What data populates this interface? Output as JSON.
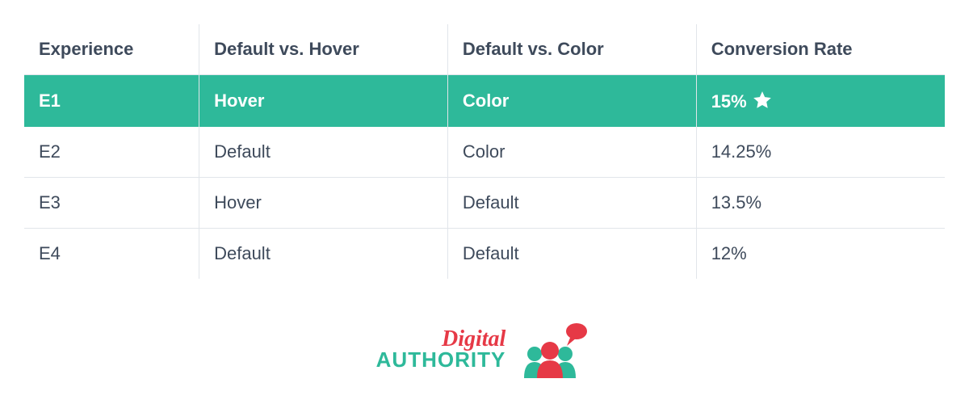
{
  "table": {
    "type": "table",
    "columns": [
      "Experience",
      "Default vs. Hover",
      "Default vs. Color",
      "Conversion Rate"
    ],
    "column_widths_pct": [
      19,
      27,
      27,
      27
    ],
    "rows": [
      {
        "cells": [
          "E1",
          "Hover",
          "Color",
          "15%"
        ],
        "highlighted": true,
        "star": true
      },
      {
        "cells": [
          "E2",
          "Default",
          "Color",
          "14.25%"
        ],
        "highlighted": false,
        "star": false
      },
      {
        "cells": [
          "E3",
          "Hover",
          "Default",
          "13.5%"
        ],
        "highlighted": false,
        "star": false
      },
      {
        "cells": [
          "E4",
          "Default",
          "Default",
          "12%"
        ],
        "highlighted": false,
        "star": false
      }
    ],
    "text_color": "#3e4a5b",
    "border_color": "#e1e5ea",
    "highlight_bg": "#2eb99a",
    "highlight_text": "#ffffff",
    "star_color": "#ffffff",
    "header_fontsize": 22,
    "cell_fontsize": 22
  },
  "logo": {
    "line1": "Digital",
    "line2": "AUTHORITY",
    "color_red": "#e63946",
    "color_teal": "#2eb99a"
  }
}
